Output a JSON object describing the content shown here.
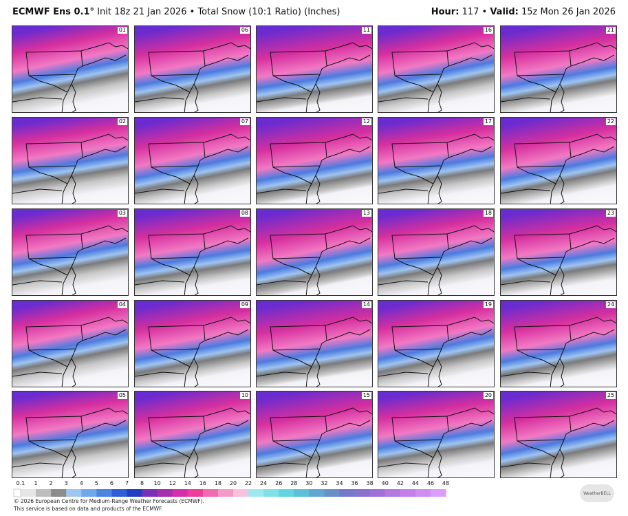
{
  "header": {
    "title": "ECMWF Ens 0.1°",
    "subtitle": "Init 18z 21 Jan 2026 • Total Snow (10:1 Ratio) (Inches)",
    "hour_label": "Hour:",
    "hour": "117 •",
    "valid_label": "Valid:",
    "valid": "15z Mon 26 Jan 2026"
  },
  "panels": [
    "01",
    "06",
    "11",
    "16",
    "21",
    "02",
    "07",
    "12",
    "17",
    "22",
    "03",
    "08",
    "13",
    "18",
    "23",
    "04",
    "09",
    "14",
    "19",
    "24",
    "05",
    "10",
    "15",
    "20",
    "25"
  ],
  "colorbar": {
    "labels": [
      "0.1",
      "1",
      "2",
      "3",
      "4",
      "5",
      "6",
      "7",
      "8",
      "10",
      "12",
      "14",
      "16",
      "18",
      "20",
      "22",
      "24",
      "26",
      "28",
      "30",
      "32",
      "34",
      "36",
      "38",
      "40",
      "42",
      "44",
      "46",
      "48"
    ],
    "colors": [
      "#e6e6e6",
      "#bdbdbd",
      "#8c8c8c",
      "#9ec7f0",
      "#6fa8ea",
      "#4d84e2",
      "#2f5fd6",
      "#1f3fc0",
      "#7a2fb8",
      "#a62fb0",
      "#d42fa8",
      "#ee3d9a",
      "#f26ab0",
      "#f59ac8",
      "#f8c2dc",
      "#a0e8f0",
      "#7ee0e8",
      "#60d6e0",
      "#5cc0d8",
      "#60a8d0",
      "#6a90c8",
      "#7478c8",
      "#8c70d0",
      "#a070d8",
      "#b478e0",
      "#c480e8",
      "#d08cf0",
      "#dc9cf8"
    ]
  },
  "footer": {
    "line1": "© 2026 European Centre for Medium-Range Weather Forecasts (ECMWF).",
    "line2": "This service is based on data and products of the ECMWF.",
    "logo": "WeatherBELL"
  }
}
